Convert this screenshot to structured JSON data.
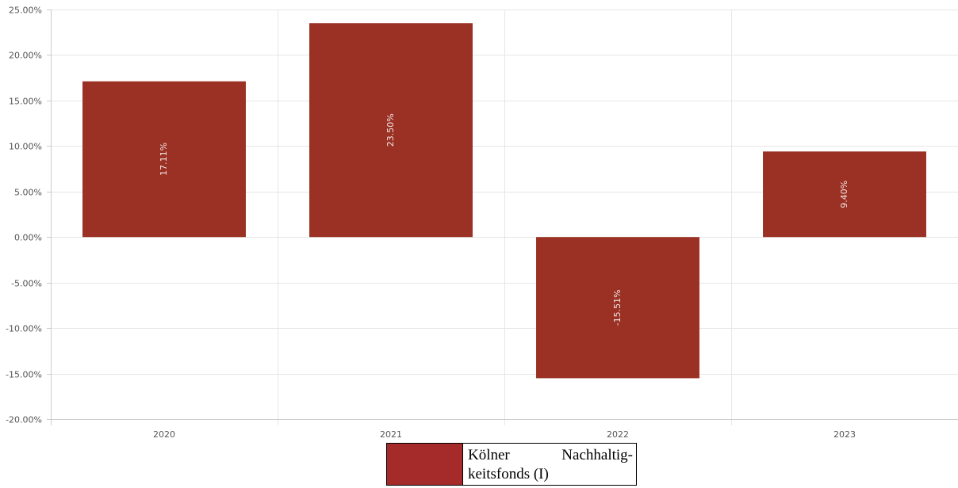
{
  "chart_data": {
    "type": "bar",
    "categories": [
      "2020",
      "2021",
      "2022",
      "2023"
    ],
    "series": [
      {
        "name": "Kölner Nachhaltig-keitsfonds (I)",
        "values": [
          17.11,
          23.5,
          -15.51,
          9.4
        ],
        "data_labels": [
          "17.11%",
          "23.50%",
          "-15.51%",
          "9.40%"
        ],
        "color": "#9a3124"
      }
    ],
    "y_ticks": [
      25,
      20,
      15,
      10,
      5,
      0,
      -5,
      -10,
      -15,
      -20
    ],
    "y_tick_labels": [
      "25.00%",
      "20.00%",
      "15.00%",
      "10.00%",
      "5.00%",
      "0.00%",
      "-5.00%",
      "-10.00%",
      "-15.00%",
      "-20.00%"
    ],
    "ylim": [
      -20,
      25
    ],
    "grid": true,
    "legend_position": "bottom-center",
    "legend_swatch_color": "#a52a2a"
  },
  "legend": {
    "label": "Kölner Nachhaltig-keitsfonds (I)"
  }
}
